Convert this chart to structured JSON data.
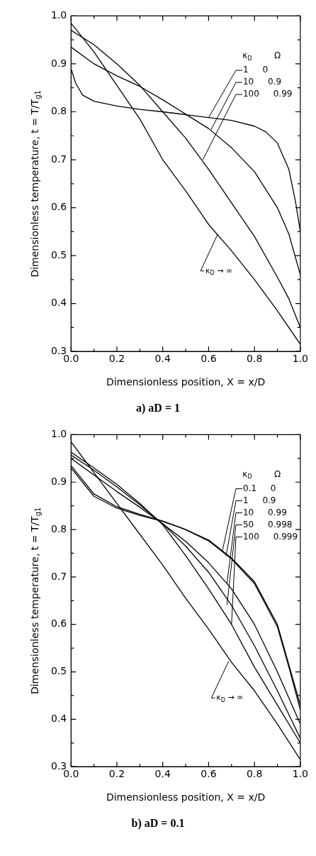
{
  "chart_data": [
    {
      "type": "line",
      "title": "a) aD = 1",
      "xlabel": "Dimensionless position, X = x/D",
      "ylabel": "Dimensionless temperature, t = T/T$_{g1}$",
      "xlim": [
        0,
        1
      ],
      "ylim": [
        0.3,
        1
      ],
      "xticks": [
        {
          "value": 0,
          "label": "0.0"
        },
        {
          "value": 0.1,
          "label": null
        },
        0.2,
        {
          "value": 0.3,
          "label": null
        },
        0.4,
        {
          "value": 0.5,
          "label": null
        },
        0.6,
        {
          "value": 0.7,
          "label": null
        },
        0.8,
        {
          "value": 0.9,
          "label": null
        },
        {
          "value": 1,
          "label": "1.0"
        }
      ],
      "yticks": [
        0.3,
        {
          "value": 0.35,
          "label": null
        },
        0.4,
        {
          "value": 0.45,
          "label": null
        },
        0.5,
        {
          "value": 0.55,
          "label": null
        },
        0.6,
        {
          "value": 0.65,
          "label": null
        },
        0.7,
        {
          "value": 0.75,
          "label": null
        },
        0.8,
        {
          "value": 0.85,
          "label": null
        },
        0.9,
        {
          "value": 0.95,
          "label": null
        },
        {
          "value": 1,
          "label": "1.0"
        }
      ],
      "grid": false,
      "legend": false,
      "marker": "none",
      "line_style": "solid",
      "series": [
        {
          "color": "#000000",
          "x": [
            0,
            0.02,
            0.05,
            0.1,
            0.2,
            0.3,
            0.4,
            0.5,
            0.6,
            0.7,
            0.8,
            0.85,
            0.9,
            0.95,
            0.98,
            1
          ],
          "values": [
            0.89,
            0.86,
            0.835,
            0.822,
            0.812,
            0.805,
            0.8,
            0.794,
            0.788,
            0.782,
            0.77,
            0.758,
            0.735,
            0.68,
            0.61,
            0.55
          ]
        },
        {
          "color": "#000000",
          "x": [
            0,
            0.1,
            0.2,
            0.3,
            0.4,
            0.5,
            0.6,
            0.7,
            0.8,
            0.9,
            0.95,
            1
          ],
          "values": [
            0.935,
            0.9,
            0.875,
            0.853,
            0.825,
            0.795,
            0.765,
            0.725,
            0.675,
            0.6,
            0.545,
            0.46
          ]
        },
        {
          "color": "#000000",
          "x": [
            0,
            0.1,
            0.2,
            0.3,
            0.4,
            0.5,
            0.6,
            0.7,
            0.8,
            0.9,
            0.95,
            1
          ],
          "values": [
            0.97,
            0.94,
            0.9,
            0.855,
            0.8,
            0.745,
            0.68,
            0.61,
            0.54,
            0.455,
            0.41,
            0.35
          ]
        },
        {
          "color": "#000000",
          "x": [
            0,
            0.1,
            0.2,
            0.3,
            0.4,
            0.5,
            0.6,
            0.7,
            0.8,
            0.9,
            1
          ],
          "values": [
            0.985,
            0.925,
            0.855,
            0.785,
            0.7,
            0.635,
            0.565,
            0.51,
            0.45,
            0.385,
            0.315
          ]
        }
      ],
      "annotations": [
        "κ$_{D}$",
        "Ω",
        {
          "text": "1 0",
          "x": 0.6,
          "y": 0.788
        },
        {
          "text": "10 0.9",
          "x": 0.61,
          "y": 0.762
        },
        {
          "text": "100 0.99",
          "x": 0.575,
          "y": 0.7
        },
        {
          "text": "κ$_{D}$ → ∞",
          "x": 0.64,
          "y": 0.545
        }
      ]
    },
    {
      "type": "line",
      "title": "b) aD = 0.1",
      "xlabel": "Dimensionless position, X = x/D",
      "ylabel": "Dimensionless temperature, t = T/T$_{g1}$",
      "xlim": [
        0,
        1
      ],
      "ylim": [
        0.3,
        1
      ],
      "xticks": [
        {
          "value": 0,
          "label": "0.0"
        },
        {
          "value": 0.1,
          "label": null
        },
        0.2,
        {
          "value": 0.3,
          "label": null
        },
        0.4,
        {
          "value": 0.5,
          "label": null
        },
        0.6,
        {
          "value": 0.7,
          "label": null
        },
        0.8,
        {
          "value": 0.9,
          "label": null
        },
        {
          "value": 1,
          "label": "1.0"
        }
      ],
      "yticks": [
        0.3,
        {
          "value": 0.35,
          "label": null
        },
        0.4,
        {
          "value": 0.45,
          "label": null
        },
        0.5,
        {
          "value": 0.55,
          "label": null
        },
        0.6,
        {
          "value": 0.65,
          "label": null
        },
        0.7,
        {
          "value": 0.75,
          "label": null
        },
        0.8,
        {
          "value": 0.85,
          "label": null
        },
        0.9,
        {
          "value": 0.95,
          "label": null
        },
        {
          "value": 1,
          "label": "1.0"
        }
      ],
      "grid": false,
      "legend": false,
      "marker": "none",
      "line_style": "solid",
      "series": [
        {
          "color": "#000000",
          "x": [
            0,
            0.1,
            0.2,
            0.3,
            0.4,
            0.5,
            0.6,
            0.7,
            0.8,
            0.9,
            0.95,
            1
          ],
          "values": [
            0.935,
            0.875,
            0.848,
            0.832,
            0.818,
            0.8,
            0.778,
            0.74,
            0.69,
            0.6,
            0.515,
            0.43
          ]
        },
        {
          "color": "#000000",
          "x": [
            0,
            0.1,
            0.2,
            0.3,
            0.4,
            0.5,
            0.6,
            0.7,
            0.8,
            0.9,
            0.95,
            1
          ],
          "values": [
            0.93,
            0.87,
            0.845,
            0.83,
            0.817,
            0.8,
            0.776,
            0.738,
            0.686,
            0.595,
            0.51,
            0.42
          ]
        },
        {
          "color": "#000000",
          "x": [
            0,
            0.1,
            0.2,
            0.3,
            0.4,
            0.5,
            0.6,
            0.7,
            0.8,
            0.9,
            1
          ],
          "values": [
            0.95,
            0.915,
            0.88,
            0.847,
            0.812,
            0.775,
            0.73,
            0.675,
            0.6,
            0.5,
            0.39
          ]
        },
        {
          "color": "#000000",
          "x": [
            0,
            0.1,
            0.2,
            0.3,
            0.4,
            0.5,
            0.6,
            0.7,
            0.8,
            0.9,
            1
          ],
          "values": [
            0.957,
            0.925,
            0.89,
            0.852,
            0.812,
            0.765,
            0.71,
            0.64,
            0.555,
            0.46,
            0.36
          ]
        },
        {
          "color": "#000000",
          "x": [
            0,
            0.1,
            0.2,
            0.3,
            0.4,
            0.5,
            0.6,
            0.7,
            0.8,
            0.9,
            1
          ],
          "values": [
            0.963,
            0.93,
            0.895,
            0.855,
            0.81,
            0.745,
            0.675,
            0.6,
            0.51,
            0.43,
            0.35
          ]
        },
        {
          "color": "#000000",
          "x": [
            0,
            0.1,
            0.2,
            0.3,
            0.4,
            0.5,
            0.6,
            0.7,
            0.8,
            0.9,
            1
          ],
          "values": [
            0.985,
            0.92,
            0.855,
            0.79,
            0.725,
            0.655,
            0.59,
            0.52,
            0.46,
            0.39,
            0.315
          ]
        }
      ],
      "annotations": [
        "κ$_{D}$",
        "Ω",
        {
          "text": "0.1 0",
          "x": 0.66,
          "y": 0.755
        },
        {
          "text": "1 0.9",
          "x": 0.676,
          "y": 0.744
        },
        {
          "text": "10 0.99",
          "x": 0.68,
          "y": 0.686
        },
        {
          "text": "50 0.998",
          "x": 0.68,
          "y": 0.641
        },
        {
          "text": "100 0.999",
          "x": 0.7,
          "y": 0.6
        },
        {
          "text": "κ$_{D}$ → ∞",
          "x": 0.687,
          "y": 0.522
        }
      ]
    }
  ]
}
